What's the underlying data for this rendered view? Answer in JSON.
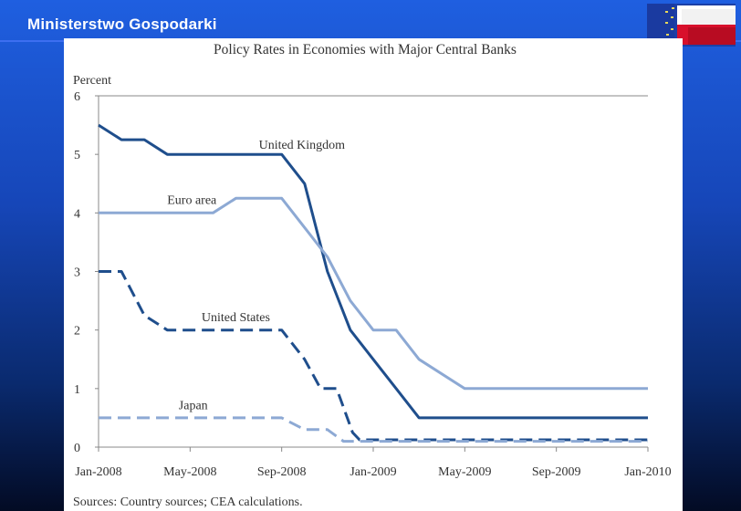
{
  "header": {
    "org_name": "Ministerstwo Gospodarki"
  },
  "logo": {
    "icon": "eu-poland-flag-icon"
  },
  "chart_data": {
    "type": "line",
    "title": "Policy Rates in Economies with Major Central Banks",
    "ylabel": "Percent",
    "ylim": [
      0,
      6
    ],
    "yticks": [
      "0",
      "1",
      "2",
      "3",
      "4",
      "5",
      "6"
    ],
    "x_range": [
      0,
      24
    ],
    "x_ticks": [
      {
        "label": "Jan-2008",
        "value": 0
      },
      {
        "label": "May-2008",
        "value": 4
      },
      {
        "label": "Sep-2008",
        "value": 8
      },
      {
        "label": "Jan-2009",
        "value": 12
      },
      {
        "label": "May-2009",
        "value": 16
      },
      {
        "label": "Sep-2009",
        "value": 20
      },
      {
        "label": "Jan-2010",
        "value": 24
      }
    ],
    "series": [
      {
        "name": "United Kingdom",
        "color": "#1f4e8c",
        "dash": false,
        "points": [
          [
            0,
            5.5
          ],
          [
            1,
            5.25
          ],
          [
            2,
            5.25
          ],
          [
            3,
            5.0
          ],
          [
            8,
            5.0
          ],
          [
            9,
            4.5
          ],
          [
            10,
            3.0
          ],
          [
            11,
            2.0
          ],
          [
            12,
            1.5
          ],
          [
            13,
            1.0
          ],
          [
            14,
            0.5
          ],
          [
            24,
            0.5
          ]
        ],
        "label_point": [
          7,
          5.1
        ]
      },
      {
        "name": "Euro area",
        "color": "#8da9d4",
        "dash": false,
        "points": [
          [
            0,
            4.0
          ],
          [
            5,
            4.0
          ],
          [
            6,
            4.25
          ],
          [
            8,
            4.25
          ],
          [
            9,
            3.75
          ],
          [
            10,
            3.25
          ],
          [
            11,
            2.5
          ],
          [
            12,
            2.0
          ],
          [
            13,
            2.0
          ],
          [
            14,
            1.5
          ],
          [
            16,
            1.0
          ],
          [
            24,
            1.0
          ]
        ],
        "label_point": [
          3,
          4.15
        ]
      },
      {
        "name": "United States",
        "color": "#1f4e8c",
        "dash": true,
        "points": [
          [
            0,
            3.0
          ],
          [
            1,
            3.0
          ],
          [
            2,
            2.25
          ],
          [
            3,
            2.0
          ],
          [
            8,
            2.0
          ],
          [
            9,
            1.5
          ],
          [
            9.7,
            1.0
          ],
          [
            10.4,
            1.0
          ],
          [
            11.1,
            0.25
          ],
          [
            11.4,
            0.125
          ],
          [
            24,
            0.125
          ]
        ],
        "label_point": [
          4.5,
          2.15
        ]
      },
      {
        "name": "Japan",
        "color": "#8da9d4",
        "dash": true,
        "points": [
          [
            0,
            0.5
          ],
          [
            8,
            0.5
          ],
          [
            9,
            0.3
          ],
          [
            10,
            0.3
          ],
          [
            10.7,
            0.1
          ],
          [
            24,
            0.1
          ]
        ],
        "label_point": [
          3.5,
          0.65
        ]
      }
    ],
    "source_note": "Sources:  Country sources; CEA calculations."
  }
}
